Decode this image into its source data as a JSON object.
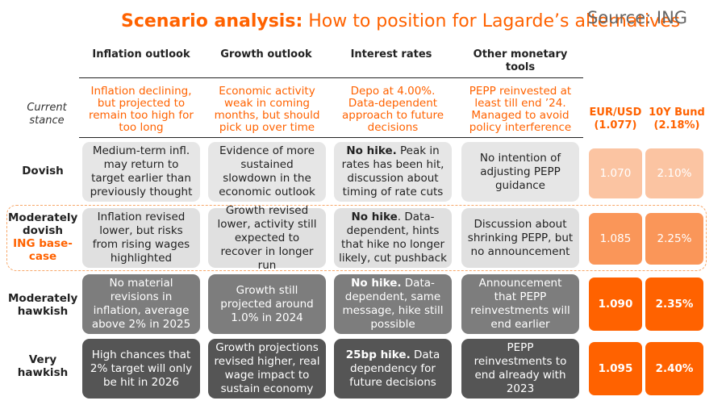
{
  "title": {
    "bold": "Scenario analysis:",
    "rest": " How to position for Lagarde’s alternatives"
  },
  "source": "Source: ING",
  "columns": [
    "Inflation outlook",
    "Growth outlook",
    "Interest rates",
    "Other monetary tools"
  ],
  "current_stance": {
    "label": "Current stance",
    "cells": [
      "Inflation declining, but projected to remain too high for too long",
      "Economic activity weak in coming months, but should pick up over time",
      "Depo at 4.00%. Data-dependent approach to future decisions",
      "PEPP reinvested at least till end ’24. Managed to avoid policy interference"
    ]
  },
  "market_headers": [
    {
      "name": "EUR/USD",
      "current": "(1.077)"
    },
    {
      "name": "10Y Bund",
      "current": "(2.18%)"
    }
  ],
  "rows": [
    {
      "label": "Dovish",
      "cells": [
        {
          "text": "Medium-term infl. may return to target earlier than previously thought"
        },
        {
          "text": "Evidence of more sustained slowdown in the economic outlook"
        },
        {
          "bold": "No hike.",
          "text": " Peak in rates has been hit, discussion about timing of rate cuts"
        },
        {
          "text": "No intention of adjusting PEPP guidance"
        }
      ],
      "eurusd": "1.070",
      "bund": "2.10%",
      "colors": {
        "eurusd": "#fbc4a2",
        "bund": "#fbc4a2"
      }
    },
    {
      "label": "Moderately dovish",
      "tag": "ING base-case",
      "cells": [
        {
          "text": "Inflation revised lower, but risks from rising wages highlighted"
        },
        {
          "text": "Growth revised lower, activity still expected to recover in longer run"
        },
        {
          "bold": "No hike",
          "text": ". Data-dependent, hints that hike no longer likely, cut pushback"
        },
        {
          "text": "Discussion about shrinking PEPP, but no announcement"
        }
      ],
      "eurusd": "1.085",
      "bund": "2.25%",
      "colors": {
        "eurusd": "#fa9659",
        "bund": "#fa9659"
      }
    },
    {
      "label": "Moderately hawkish",
      "cells": [
        {
          "text": "No material revisions in inflation, average above 2% in 2025"
        },
        {
          "text": "Growth still projected around 1.0% in 2024"
        },
        {
          "bold": "No hike.",
          "text": " Data-dependent, same message, hike still possible"
        },
        {
          "text": "Announcement that PEPP reinvestments will end earlier"
        }
      ],
      "eurusd": "1.090",
      "bund": "2.35%",
      "colors": {
        "eurusd": "#ff6200",
        "bund": "#ff6200"
      }
    },
    {
      "label": "Very hawkish",
      "cells": [
        {
          "text": "High chances that 2% target will only be hit in 2026"
        },
        {
          "text": "Growth projections revised higher, real wage impact to sustain economy"
        },
        {
          "bold": "25bp hike.",
          "text": " Data dependency for future decisions"
        },
        {
          "text": "PEPP reinvestments to end already with 2023"
        }
      ],
      "eurusd": "1.095",
      "bund": "2.40%",
      "colors": {
        "eurusd": "#ff6200",
        "bund": "#ff6200"
      }
    }
  ],
  "colors": {
    "accent": "#ff6200",
    "row1": "#e6e6e6",
    "row2": "#bdbdbd",
    "row3": "#7d7d7d",
    "row4": "#555555"
  }
}
